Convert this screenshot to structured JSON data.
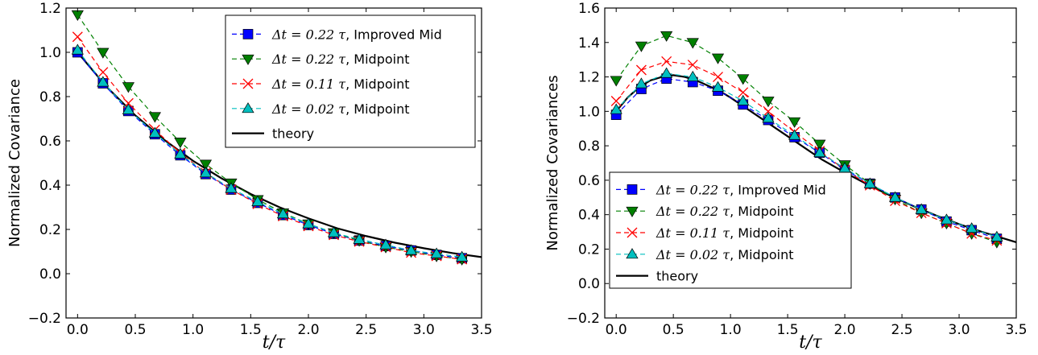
{
  "chart_data": [
    {
      "type": "line",
      "xlabel": "t/τ",
      "ylabel": "Normalized Covariance",
      "xlim": [
        -0.1,
        3.5
      ],
      "ylim": [
        -0.2,
        1.2
      ],
      "xticks": [
        0.0,
        0.5,
        1.0,
        1.5,
        2.0,
        2.5,
        3.0,
        3.5
      ],
      "xtick_labels": [
        "0.0",
        "0.5",
        "1.0",
        "1.5",
        "2.0",
        "2.5",
        "3.0",
        "3.5"
      ],
      "yticks": [
        -0.2,
        0.0,
        0.2,
        0.4,
        0.6,
        0.8,
        1.0,
        1.2
      ],
      "ytick_labels": [
        "−0.2",
        "0.0",
        "0.2",
        "0.4",
        "0.6",
        "0.8",
        "1.0",
        "1.2"
      ],
      "grid": false,
      "legend_position": "top-right",
      "series": [
        {
          "name": "Δt = 0.22 τ, Improved Mid",
          "color": "#0000ff",
          "marker": "square",
          "style": "dashed",
          "x": [
            0.0,
            0.22,
            0.44,
            0.67,
            0.89,
            1.11,
            1.33,
            1.56,
            1.78,
            2.0,
            2.22,
            2.44,
            2.67,
            2.89,
            3.11,
            3.33
          ],
          "y": [
            1.0,
            0.86,
            0.735,
            0.63,
            0.535,
            0.45,
            0.38,
            0.32,
            0.265,
            0.22,
            0.18,
            0.15,
            0.125,
            0.105,
            0.085,
            0.07
          ]
        },
        {
          "name": "Δt = 0.22 τ, Midpoint",
          "color": "#008000",
          "marker": "triangle-down",
          "style": "dashed",
          "x": [
            0.0,
            0.22,
            0.44,
            0.67,
            0.89,
            1.11,
            1.33,
            1.56,
            1.78,
            2.0,
            2.22,
            2.44,
            2.67,
            2.89,
            3.11,
            3.33
          ],
          "y": [
            1.17,
            1.0,
            0.845,
            0.71,
            0.595,
            0.495,
            0.41,
            0.335,
            0.275,
            0.225,
            0.185,
            0.15,
            0.12,
            0.1,
            0.08,
            0.065
          ]
        },
        {
          "name": "Δt = 0.11 τ, Midpoint",
          "color": "#ff0000",
          "marker": "x",
          "style": "dashed",
          "x": [
            0.0,
            0.22,
            0.44,
            0.67,
            0.89,
            1.11,
            1.33,
            1.56,
            1.78,
            2.0,
            2.22,
            2.44,
            2.67,
            2.89,
            3.11,
            3.33
          ],
          "y": [
            1.07,
            0.91,
            0.77,
            0.65,
            0.545,
            0.455,
            0.38,
            0.315,
            0.26,
            0.215,
            0.175,
            0.145,
            0.12,
            0.095,
            0.08,
            0.065
          ]
        },
        {
          "name": "Δt = 0.02 τ, Midpoint",
          "color": "#00bfbf",
          "marker": "triangle-up",
          "style": "dashed",
          "x": [
            0.0,
            0.22,
            0.44,
            0.67,
            0.89,
            1.11,
            1.33,
            1.56,
            1.78,
            2.0,
            2.22,
            2.44,
            2.67,
            2.89,
            3.11,
            3.33
          ],
          "y": [
            1.01,
            0.865,
            0.74,
            0.635,
            0.54,
            0.455,
            0.385,
            0.325,
            0.27,
            0.225,
            0.185,
            0.155,
            0.13,
            0.105,
            0.09,
            0.075
          ]
        },
        {
          "name": "theory",
          "color": "#000000",
          "marker": "none",
          "style": "solid",
          "x": [
            0.0,
            0.25,
            0.5,
            0.75,
            1.0,
            1.25,
            1.5,
            1.75,
            2.0,
            2.25,
            2.5,
            2.75,
            3.0,
            3.25,
            3.5
          ],
          "y": [
            1.0,
            0.845,
            0.715,
            0.605,
            0.51,
            0.43,
            0.36,
            0.3,
            0.25,
            0.205,
            0.17,
            0.14,
            0.115,
            0.093,
            0.075
          ]
        }
      ]
    },
    {
      "type": "line",
      "xlabel": "t/τ",
      "ylabel": "Normalized Covariances",
      "xlim": [
        -0.1,
        3.5
      ],
      "ylim": [
        -0.2,
        1.6
      ],
      "xticks": [
        0.0,
        0.5,
        1.0,
        1.5,
        2.0,
        2.5,
        3.0,
        3.5
      ],
      "xtick_labels": [
        "0.0",
        "0.5",
        "1.0",
        "1.5",
        "2.0",
        "2.5",
        "3.0",
        "3.5"
      ],
      "yticks": [
        -0.2,
        0.0,
        0.2,
        0.4,
        0.6,
        0.8,
        1.0,
        1.2,
        1.4,
        1.6
      ],
      "ytick_labels": [
        "−0.2",
        "0.0",
        "0.2",
        "0.4",
        "0.6",
        "0.8",
        "1.0",
        "1.2",
        "1.4",
        "1.6"
      ],
      "grid": false,
      "legend_position": "bottom-left",
      "series": [
        {
          "name": "Δt = 0.22 τ, Improved Mid",
          "color": "#0000ff",
          "marker": "square",
          "style": "dashed",
          "x": [
            0.0,
            0.22,
            0.44,
            0.67,
            0.89,
            1.11,
            1.33,
            1.56,
            1.78,
            2.0,
            2.22,
            2.44,
            2.67,
            2.89,
            3.11,
            3.33
          ],
          "y": [
            0.98,
            1.13,
            1.19,
            1.17,
            1.12,
            1.04,
            0.95,
            0.85,
            0.76,
            0.66,
            0.58,
            0.5,
            0.43,
            0.36,
            0.31,
            0.26
          ]
        },
        {
          "name": "Δt = 0.22 τ, Midpoint",
          "color": "#008000",
          "marker": "triangle-down",
          "style": "dashed",
          "x": [
            0.0,
            0.22,
            0.44,
            0.67,
            0.89,
            1.11,
            1.33,
            1.56,
            1.78,
            2.0,
            2.22,
            2.44,
            2.67,
            2.89,
            3.11,
            3.33
          ],
          "y": [
            1.18,
            1.38,
            1.44,
            1.4,
            1.31,
            1.19,
            1.06,
            0.94,
            0.81,
            0.69,
            0.58,
            0.49,
            0.41,
            0.35,
            0.29,
            0.24
          ]
        },
        {
          "name": "Δt = 0.11 τ, Midpoint",
          "color": "#ff0000",
          "marker": "x",
          "style": "dashed",
          "x": [
            0.0,
            0.22,
            0.44,
            0.67,
            0.89,
            1.11,
            1.33,
            1.56,
            1.78,
            2.0,
            2.22,
            2.44,
            2.67,
            2.89,
            3.11,
            3.33
          ],
          "y": [
            1.06,
            1.24,
            1.29,
            1.27,
            1.2,
            1.11,
            1.0,
            0.88,
            0.77,
            0.66,
            0.57,
            0.48,
            0.41,
            0.35,
            0.29,
            0.25
          ]
        },
        {
          "name": "Δt = 0.02 τ, Midpoint",
          "color": "#00bfbf",
          "marker": "triangle-up",
          "style": "dashed",
          "x": [
            0.0,
            0.22,
            0.44,
            0.67,
            0.89,
            1.11,
            1.33,
            1.56,
            1.78,
            2.0,
            2.22,
            2.44,
            2.67,
            2.89,
            3.11,
            3.33
          ],
          "y": [
            1.01,
            1.16,
            1.22,
            1.2,
            1.14,
            1.06,
            0.96,
            0.86,
            0.76,
            0.67,
            0.58,
            0.5,
            0.43,
            0.37,
            0.32,
            0.27
          ]
        },
        {
          "name": "theory",
          "color": "#000000",
          "marker": "none",
          "style": "solid",
          "x": [
            0.0,
            0.1,
            0.2,
            0.3,
            0.4,
            0.5,
            0.6,
            0.7,
            0.8,
            0.9,
            1.0,
            1.2,
            1.4,
            1.6,
            1.8,
            2.0,
            2.2,
            2.4,
            2.6,
            2.8,
            3.0,
            3.2,
            3.5
          ],
          "y": [
            1.0,
            1.08,
            1.14,
            1.18,
            1.2,
            1.21,
            1.2,
            1.18,
            1.15,
            1.12,
            1.08,
            0.99,
            0.9,
            0.81,
            0.72,
            0.645,
            0.575,
            0.51,
            0.45,
            0.395,
            0.345,
            0.3,
            0.24
          ]
        }
      ]
    }
  ]
}
